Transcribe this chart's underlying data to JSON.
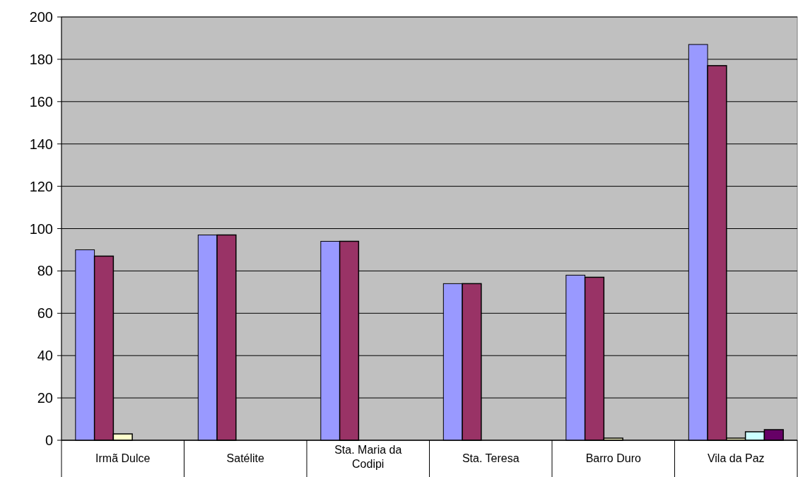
{
  "chart_data": {
    "type": "bar",
    "categories": [
      "Irmã Dulce",
      "Satélite",
      "Sta. Maria da Codipi",
      "Sta. Teresa",
      "Barro Duro",
      "Vila da Paz"
    ],
    "series": [
      {
        "color": "#9999ff",
        "values": [
          90,
          97,
          94,
          74,
          78,
          187
        ]
      },
      {
        "color": "#993366",
        "values": [
          87,
          97,
          94,
          74,
          77,
          177
        ]
      },
      {
        "color": "#ffffcc",
        "values": [
          3,
          null,
          null,
          null,
          1,
          1
        ]
      },
      {
        "color": "#ccffff",
        "values": [
          null,
          null,
          null,
          null,
          null,
          4
        ]
      },
      {
        "color": "#660066",
        "values": [
          null,
          null,
          null,
          null,
          null,
          5
        ]
      }
    ],
    "ylim": [
      0,
      200
    ],
    "yticks": [
      0,
      20,
      40,
      60,
      80,
      100,
      120,
      140,
      160,
      180,
      200
    ],
    "grid": "y"
  }
}
